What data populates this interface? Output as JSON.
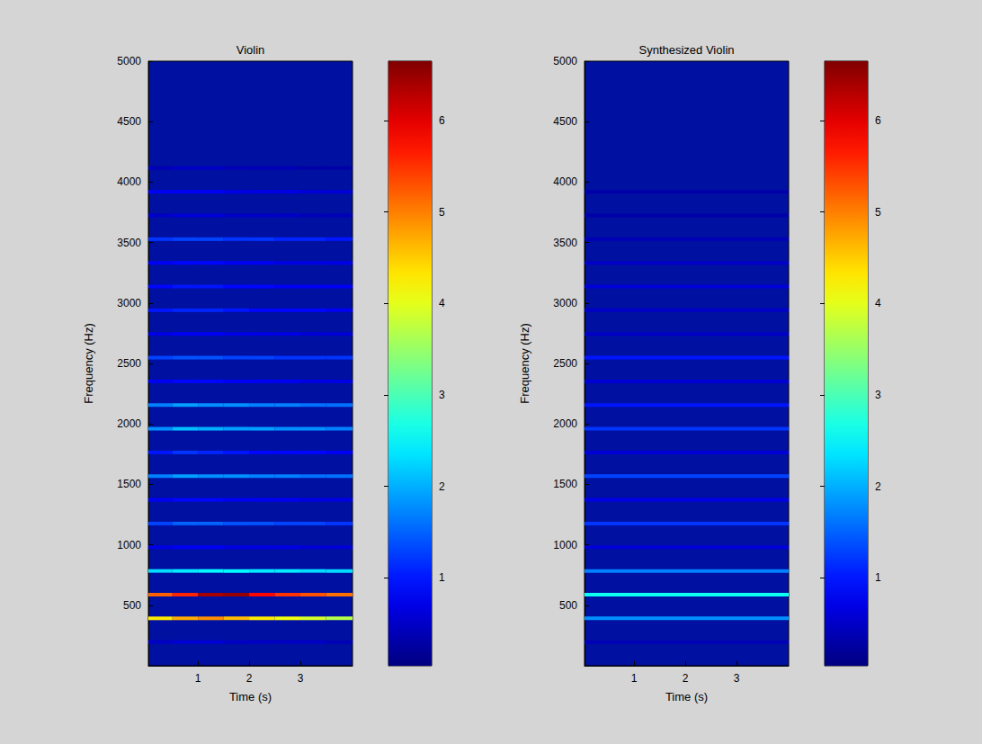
{
  "chart_data": [
    {
      "type": "heatmap",
      "title": "Violin",
      "x_label": "Time (s)",
      "y_label": "Frequency (Hz)",
      "xlim": [
        0.03,
        4.02
      ],
      "xticks": [
        1,
        2,
        3
      ],
      "ylim": [
        0,
        5000
      ],
      "yticks": [
        500,
        1000,
        1500,
        2000,
        2500,
        3000,
        3500,
        4000,
        4500,
        5000
      ],
      "time_edges": [
        0.03,
        0.5,
        1,
        1.5,
        2,
        2.5,
        3,
        3.5,
        4.02
      ],
      "frequencies": [
        196,
        392,
        588,
        784,
        980,
        1176,
        1372,
        1568,
        1764,
        1960,
        2156,
        2352,
        2548,
        2744,
        2940,
        3136,
        3332,
        3528,
        3724,
        3920,
        4116
      ],
      "cells": [
        [
          0.5,
          0.6,
          0.6,
          0.5,
          0.5,
          0.5,
          0.5,
          0.4
        ],
        [
          4.3,
          4.7,
          4.9,
          4.6,
          4.3,
          4.1,
          3.9,
          3.7
        ],
        [
          5.2,
          5.6,
          6.4,
          6.5,
          5.8,
          5.5,
          5.3,
          5.1
        ],
        [
          2.3,
          2.4,
          2.5,
          2.5,
          2.4,
          2.4,
          2.3,
          2.3
        ],
        [
          0.7,
          0.8,
          0.8,
          0.7,
          0.7,
          0.7,
          0.6,
          0.6
        ],
        [
          1.3,
          1.5,
          1.5,
          1.4,
          1.4,
          1.3,
          1.3,
          1.2
        ],
        [
          0.8,
          0.9,
          0.9,
          0.8,
          0.8,
          0.8,
          0.7,
          0.7
        ],
        [
          1.7,
          1.9,
          1.8,
          1.8,
          1.7,
          1.7,
          1.6,
          1.6
        ],
        [
          1.0,
          1.2,
          1.1,
          1.0,
          0.9,
          0.9,
          0.9,
          0.8
        ],
        [
          1.8,
          2.1,
          2.0,
          1.9,
          1.9,
          1.8,
          1.8,
          1.7
        ],
        [
          1.7,
          1.9,
          1.8,
          1.8,
          1.7,
          1.7,
          1.6,
          1.6
        ],
        [
          0.8,
          0.9,
          0.9,
          0.8,
          0.8,
          0.8,
          0.7,
          0.7
        ],
        [
          1.3,
          1.4,
          1.4,
          1.3,
          1.3,
          1.2,
          1.2,
          1.2
        ],
        [
          0.7,
          0.8,
          0.8,
          0.7,
          0.7,
          0.7,
          0.6,
          0.6
        ],
        [
          1.0,
          1.1,
          1.1,
          1.0,
          0.9,
          0.9,
          0.9,
          0.8
        ],
        [
          0.9,
          1.0,
          1.0,
          0.9,
          0.9,
          0.8,
          0.8,
          0.8
        ],
        [
          0.8,
          0.9,
          0.9,
          0.8,
          0.8,
          0.7,
          0.7,
          0.7
        ],
        [
          1.2,
          1.3,
          1.3,
          1.2,
          1.2,
          1.1,
          1.1,
          1.0
        ],
        [
          0.5,
          0.6,
          0.6,
          0.5,
          0.5,
          0.5,
          0.4,
          0.4
        ],
        [
          0.8,
          0.8,
          0.8,
          0.7,
          0.7,
          0.7,
          0.6,
          0.6
        ],
        [
          0.4,
          0.5,
          0.5,
          0.4,
          0.4,
          0.4,
          0.3,
          0.3
        ]
      ],
      "colorbar_range": [
        0.04,
        6.65
      ],
      "colorbar_ticks": [
        1,
        2,
        3,
        4,
        5,
        6
      ]
    },
    {
      "type": "heatmap",
      "title": "Synthesized Violin",
      "x_label": "Time (s)",
      "y_label": "Frequency (Hz)",
      "xlim": [
        0.03,
        4.02
      ],
      "xticks": [
        1,
        2,
        3
      ],
      "ylim": [
        0,
        5000
      ],
      "yticks": [
        500,
        1000,
        1500,
        2000,
        2500,
        3000,
        3500,
        4000,
        4500,
        5000
      ],
      "time_edges": [
        0.03,
        4.02
      ],
      "frequencies": [
        196,
        392,
        588,
        784,
        980,
        1176,
        1372,
        1568,
        1764,
        1960,
        2156,
        2352,
        2548,
        2744,
        2940,
        3136,
        3332,
        3528,
        3724,
        3920
      ],
      "cells": [
        [
          0.4
        ],
        [
          1.8
        ],
        [
          2.6
        ],
        [
          1.7
        ],
        [
          0.6
        ],
        [
          1.2
        ],
        [
          0.7
        ],
        [
          1.3
        ],
        [
          0.6
        ],
        [
          1.2
        ],
        [
          1.0
        ],
        [
          0.6
        ],
        [
          1.0
        ],
        [
          0.5
        ],
        [
          0.5
        ],
        [
          0.6
        ],
        [
          0.5
        ],
        [
          0.4
        ],
        [
          0.3
        ],
        [
          0.3
        ]
      ],
      "colorbar_range": [
        0.04,
        6.65
      ],
      "colorbar_ticks": [
        1,
        2,
        3,
        4,
        5,
        6
      ]
    }
  ]
}
